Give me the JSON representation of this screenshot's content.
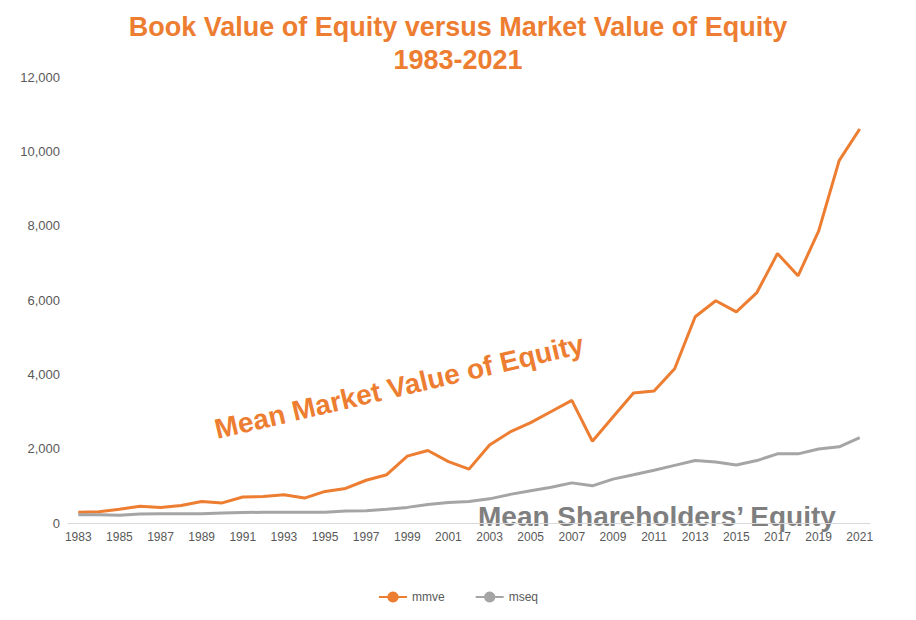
{
  "chart_data": {
    "type": "line",
    "title": "Book Value of Equity versus Market Value of Equity",
    "subtitle": "1983-2021",
    "categories": [
      "1983",
      null,
      "1985",
      null,
      "1987",
      null,
      "1989",
      null,
      "1991",
      null,
      "1993",
      null,
      "1995",
      null,
      "1997",
      null,
      "1999",
      null,
      "2001",
      null,
      "2003",
      null,
      "2005",
      null,
      "2007",
      null,
      "2009",
      null,
      "2011",
      null,
      "2013",
      null,
      "2015",
      null,
      "2017",
      null,
      "2019",
      null,
      "2021"
    ],
    "series": [
      {
        "name": "mmve",
        "color": "#ed7d31",
        "values": [
          290,
          300,
          370,
          450,
          420,
          470,
          580,
          540,
          700,
          710,
          760,
          670,
          850,
          930,
          1150,
          1300,
          1800,
          1950,
          1650,
          1450,
          2100,
          2450,
          2700,
          3000,
          3300,
          2200,
          2850,
          3500,
          3550,
          4150,
          5550,
          5980,
          5680,
          6200,
          7250,
          6650,
          7850,
          9750,
          10600
        ]
      },
      {
        "name": "mseq",
        "color": "#a5a5a5",
        "values": [
          220,
          220,
          210,
          240,
          250,
          250,
          250,
          270,
          280,
          290,
          290,
          290,
          290,
          320,
          330,
          370,
          420,
          500,
          550,
          580,
          650,
          770,
          870,
          960,
          1080,
          1000,
          1180,
          1300,
          1420,
          1550,
          1680,
          1640,
          1560,
          1680,
          1860,
          1860,
          1990,
          2050,
          2300
        ]
      }
    ],
    "ylim": [
      0,
      12000
    ],
    "yticks": [
      0,
      2000,
      4000,
      6000,
      8000,
      10000,
      12000
    ],
    "grid": false,
    "legend": "bottom",
    "annotations": [
      {
        "text": "Mean Market Value of Equity",
        "color": "#ed7d31"
      },
      {
        "text": "Mean Shareholders’ Equity",
        "color": "#7f7f7f"
      }
    ]
  }
}
